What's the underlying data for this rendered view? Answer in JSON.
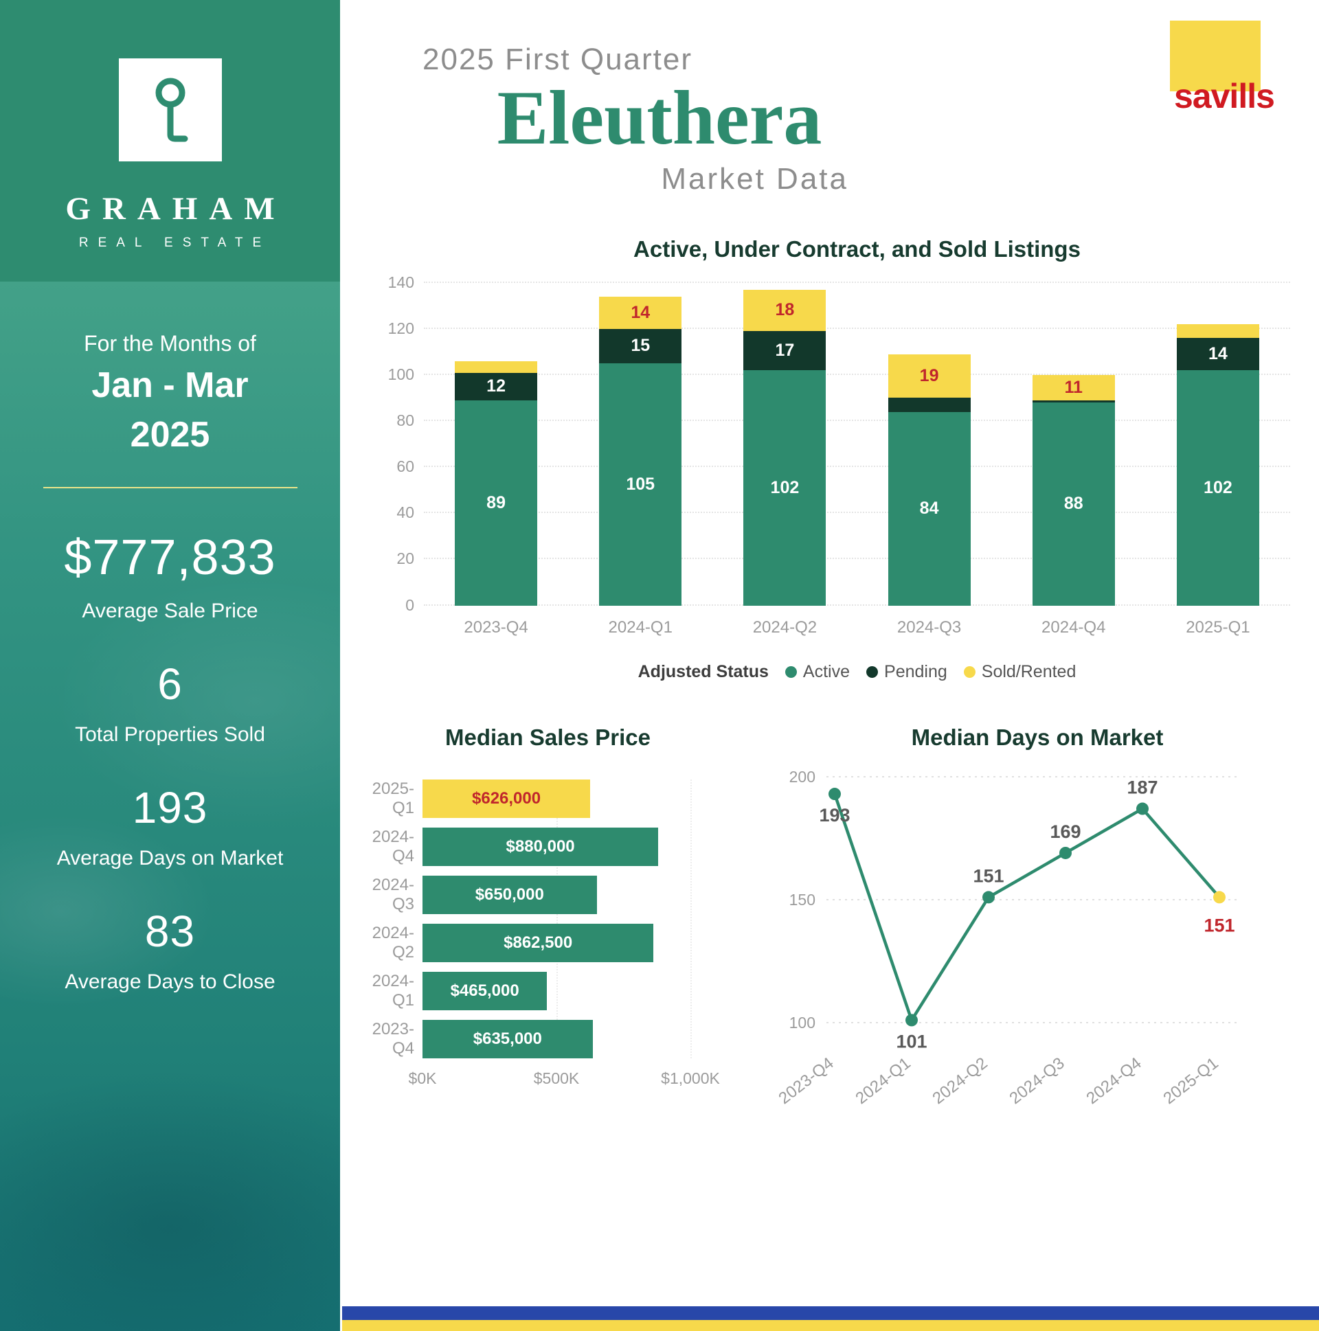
{
  "colors": {
    "brand_green": "#2e8c70",
    "chart_green": "#2e8b6e",
    "dark_green": "#12382b",
    "yellow": "#f7d94b",
    "red": "#c0262c",
    "blue_strip": "#2847a9",
    "title_green": "#173b2f"
  },
  "sidebar": {
    "brand_name": "GRAHAM",
    "brand_sub": "REAL ESTATE",
    "period_intro": "For the Months of",
    "period_line1": "Jan - Mar",
    "period_line2": "2025",
    "stats": [
      {
        "value": "$777,833",
        "label": "Average Sale Price"
      },
      {
        "value": "6",
        "label": "Total Properties Sold"
      },
      {
        "value": "193",
        "label": "Average Days on Market"
      },
      {
        "value": "83",
        "label": "Average Days to Close"
      }
    ]
  },
  "header": {
    "pretitle": "2025 First Quarter",
    "title": "Eleuthera",
    "subtitle": "Market Data",
    "logo_text": "savills"
  },
  "chart_data": [
    {
      "type": "bar",
      "stacked": true,
      "title": "Active, Under Contract, and Sold Listings",
      "categories": [
        "2023-Q4",
        "2024-Q1",
        "2024-Q2",
        "2024-Q3",
        "2024-Q4",
        "2025-Q1"
      ],
      "series": [
        {
          "name": "Active",
          "color": "#2e8b6e",
          "label_color": "#ffffff",
          "values": [
            89,
            105,
            102,
            84,
            88,
            102
          ],
          "show_labels": [
            true,
            true,
            true,
            true,
            true,
            true
          ]
        },
        {
          "name": "Pending",
          "color": "#12382b",
          "label_color": "#ffffff",
          "values": [
            12,
            15,
            17,
            6,
            1,
            14
          ],
          "show_labels": [
            true,
            true,
            true,
            false,
            false,
            true
          ]
        },
        {
          "name": "Sold/Rented",
          "color": "#f7d94b",
          "label_color": "#c0262c",
          "values": [
            5,
            14,
            18,
            19,
            11,
            6
          ],
          "show_labels": [
            false,
            true,
            true,
            true,
            true,
            false
          ]
        }
      ],
      "ylim": [
        0,
        140
      ],
      "yticks": [
        0,
        20,
        40,
        60,
        80,
        100,
        120,
        140
      ],
      "legend_title": "Adjusted Status",
      "grid": true,
      "legend_position": "bottom"
    },
    {
      "type": "bar",
      "orientation": "horizontal",
      "title": "Median Sales Price",
      "categories": [
        "2025-Q1",
        "2024-Q4",
        "2024-Q3",
        "2024-Q2",
        "2024-Q1",
        "2023-Q4"
      ],
      "values": [
        626000,
        880000,
        650000,
        862500,
        465000,
        635000
      ],
      "bar_labels": [
        "$626,000",
        "$880,000",
        "$650,000",
        "$862,500",
        "$465,000",
        "$635,000"
      ],
      "bar_colors": [
        "#f7d94b",
        "#2e8b6e",
        "#2e8b6e",
        "#2e8b6e",
        "#2e8b6e",
        "#2e8b6e"
      ],
      "label_colors": [
        "#c0262c",
        "#ffffff",
        "#ffffff",
        "#ffffff",
        "#ffffff",
        "#ffffff"
      ],
      "xlim": [
        0,
        1000000
      ],
      "xticks": [
        "$0K",
        "$500K",
        "$1,000K"
      ]
    },
    {
      "type": "line",
      "title": "Median Days on Market",
      "categories": [
        "2023-Q4",
        "2024-Q1",
        "2024-Q2",
        "2024-Q3",
        "2024-Q4",
        "2025-Q1"
      ],
      "values": [
        193,
        101,
        151,
        169,
        187,
        151
      ],
      "point_colors": [
        "#2e8b6e",
        "#2e8b6e",
        "#2e8b6e",
        "#2e8b6e",
        "#2e8b6e",
        "#f7d94b"
      ],
      "label_colors": [
        "#595959",
        "#595959",
        "#595959",
        "#595959",
        "#595959",
        "#c0262c"
      ],
      "label_pos": [
        "below",
        "below",
        "above",
        "above",
        "above",
        "below"
      ],
      "line_color": "#2e8b6e",
      "ylim": [
        100,
        200
      ],
      "yticks": [
        100,
        150,
        200
      ],
      "grid": true
    }
  ]
}
